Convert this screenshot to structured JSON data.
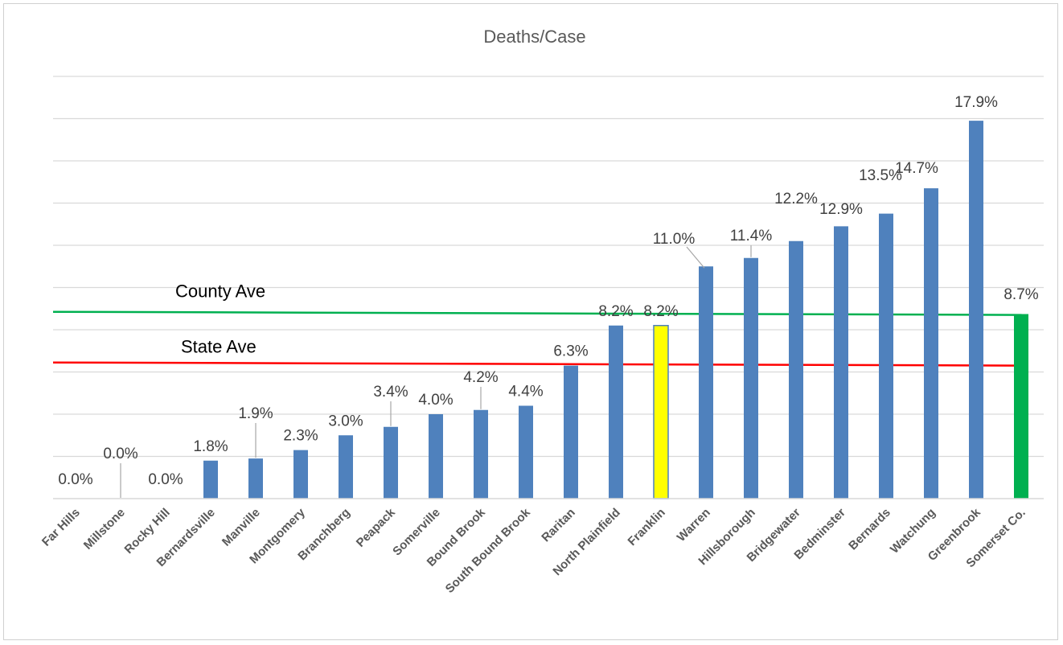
{
  "chart_data": {
    "type": "bar",
    "title": "Deaths/Case",
    "xlabel": "",
    "ylabel": "",
    "ylim": [
      0,
      20
    ],
    "grid": true,
    "categories": [
      "Far Hills",
      "Millstone",
      "Rocky Hill",
      "Bernardsville",
      "Manville",
      "Montgomery",
      "Branchberg",
      "Peapack",
      "Somerville",
      "Bound Brook",
      "South Bound Brook",
      "Raritan",
      "North Plainfield",
      "Franklin",
      "Warren",
      "Hillsborough",
      "Bridgewater",
      "Bedminster",
      "Bernards",
      "Watchung",
      "Greenbrook",
      "Somerset Co."
    ],
    "values": [
      0.0,
      0.0,
      0.0,
      1.8,
      1.9,
      2.3,
      3.0,
      3.4,
      4.0,
      4.2,
      4.4,
      6.3,
      8.2,
      8.2,
      11.0,
      11.4,
      12.2,
      12.9,
      13.5,
      14.7,
      17.9,
      8.7
    ],
    "data_labels": [
      "0.0%",
      "0.0%",
      "0.0%",
      "1.8%",
      "1.9%",
      "2.3%",
      "3.0%",
      "3.4%",
      "4.0%",
      "4.2%",
      "4.4%",
      "6.3%",
      "8.2%",
      "8.2%",
      "11.0%",
      "11.4%",
      "12.2%",
      "12.9%",
      "13.5%",
      "14.7%",
      "17.9%",
      "8.7%"
    ],
    "bar_colors": [
      "#4f81bd",
      "#4f81bd",
      "#4f81bd",
      "#4f81bd",
      "#4f81bd",
      "#4f81bd",
      "#4f81bd",
      "#4f81bd",
      "#4f81bd",
      "#4f81bd",
      "#4f81bd",
      "#4f81bd",
      "#4f81bd",
      "#ffff00",
      "#4f81bd",
      "#4f81bd",
      "#4f81bd",
      "#4f81bd",
      "#4f81bd",
      "#4f81bd",
      "#4f81bd",
      "#00b050"
    ],
    "reference_lines": [
      {
        "label": "County Ave",
        "color": "#00b050",
        "start": 8.85,
        "end": 8.7
      },
      {
        "label": "State Ave",
        "color": "#ff0000",
        "start": 6.45,
        "end": 6.3
      }
    ]
  }
}
